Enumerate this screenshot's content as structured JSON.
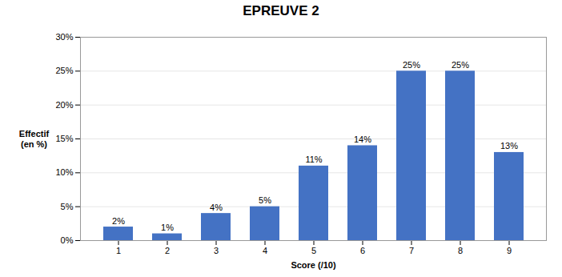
{
  "chart_data": {
    "type": "bar",
    "title": "EPREUVE 2",
    "xlabel": "Score (/10)",
    "ylabel": "Effectif\n(en %)",
    "categories": [
      1,
      2,
      3,
      4,
      5,
      6,
      7,
      8,
      9
    ],
    "values": [
      0.02,
      0.01,
      0.04,
      0.05,
      0.11,
      0.14,
      0.25,
      0.25,
      0.13
    ],
    "value_labels": [
      "2%",
      "1%",
      "4%",
      "5%",
      "11%",
      "14%",
      "25%",
      "25%",
      "13%"
    ],
    "data_labels": true,
    "color": "#4472C4",
    "ylim": [
      0,
      0.3
    ],
    "yticks": [
      {
        "value": 0,
        "label": "0%"
      },
      {
        "value": 0.05,
        "label": "5%"
      },
      {
        "value": 0.1,
        "label": "10%"
      },
      {
        "value": 0.15,
        "label": "15%"
      },
      {
        "value": 0.2,
        "label": "20%"
      },
      {
        "value": 0.25,
        "label": "25%"
      },
      {
        "value": 0.3,
        "label": "30%"
      }
    ],
    "grid": true
  }
}
